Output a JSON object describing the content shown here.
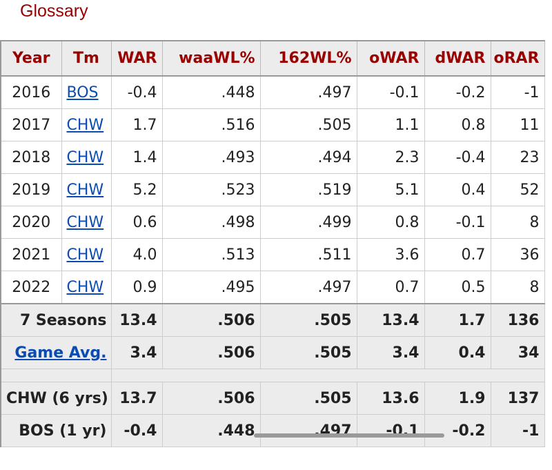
{
  "glossary": "Glossary",
  "headers": [
    "Year",
    "Tm",
    "WAR",
    "waaWL%",
    "162WL%",
    "oWAR",
    "dWAR",
    "oRAR"
  ],
  "rows": [
    {
      "year": "2016",
      "tm": "BOS",
      "war": "-0.4",
      "waa": ".448",
      "wl162": ".497",
      "owar": "-0.1",
      "dwar": "-0.2",
      "orar": "-1"
    },
    {
      "year": "2017",
      "tm": "CHW",
      "war": "1.7",
      "waa": ".516",
      "wl162": ".505",
      "owar": "1.1",
      "dwar": "0.8",
      "orar": "11"
    },
    {
      "year": "2018",
      "tm": "CHW",
      "war": "1.4",
      "waa": ".493",
      "wl162": ".494",
      "owar": "2.3",
      "dwar": "-0.4",
      "orar": "23"
    },
    {
      "year": "2019",
      "tm": "CHW",
      "war": "5.2",
      "waa": ".523",
      "wl162": ".519",
      "owar": "5.1",
      "dwar": "0.4",
      "orar": "52"
    },
    {
      "year": "2020",
      "tm": "CHW",
      "war": "0.6",
      "waa": ".498",
      "wl162": ".499",
      "owar": "0.8",
      "dwar": "-0.1",
      "orar": "8"
    },
    {
      "year": "2021",
      "tm": "CHW",
      "war": "4.0",
      "waa": ".513",
      "wl162": ".511",
      "owar": "3.6",
      "dwar": "0.7",
      "orar": "36"
    },
    {
      "year": "2022",
      "tm": "CHW",
      "war": "0.9",
      "waa": ".495",
      "wl162": ".497",
      "owar": "0.7",
      "dwar": "0.5",
      "orar": "8"
    }
  ],
  "totals": [
    {
      "label": "7 Seasons",
      "war": "13.4",
      "waa": ".506",
      "wl162": ".505",
      "owar": "13.4",
      "dwar": "1.7",
      "orar": "136"
    },
    {
      "label": "Game Avg.",
      "war": "3.4",
      "waa": ".506",
      "wl162": ".505",
      "owar": "3.4",
      "dwar": "0.4",
      "orar": "34"
    }
  ],
  "team_totals": [
    {
      "label": "CHW (6 yrs)",
      "war": "13.7",
      "waa": ".506",
      "wl162": ".505",
      "owar": "13.6",
      "dwar": "1.9",
      "orar": "137"
    },
    {
      "label": "BOS (1 yr)",
      "war": "-0.4",
      "waa": ".448",
      "wl162": ".497",
      "owar": "-0.1",
      "dwar": "-0.2",
      "orar": "-1"
    }
  ],
  "colors": {
    "header_text": "#990000",
    "link": "#0b4cb3",
    "row_shade": "#ececec"
  }
}
